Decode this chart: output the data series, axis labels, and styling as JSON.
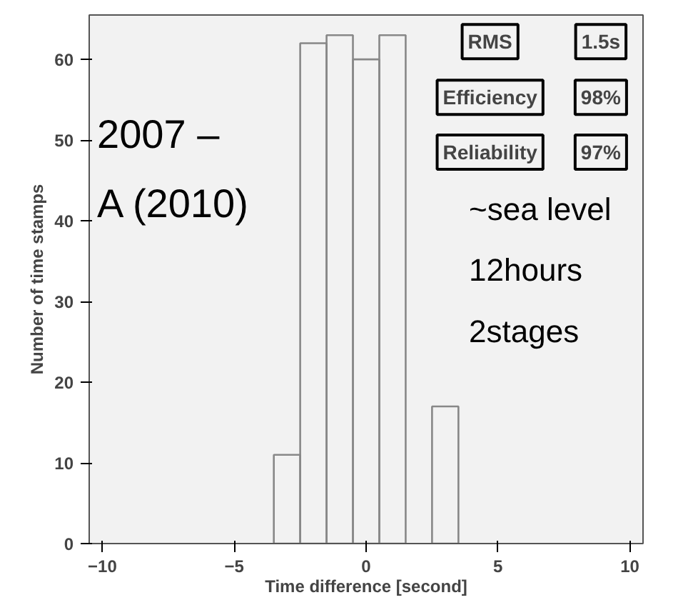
{
  "chart_data": {
    "type": "histogram",
    "xlabel": "Time difference [second]",
    "ylabel": "Number of time stamps",
    "bins": [
      -3.5,
      -2.5,
      -1.5,
      -0.5,
      0.5,
      1.5,
      2.5,
      3.5
    ],
    "values": [
      11,
      62,
      63,
      60,
      63,
      null,
      17
    ],
    "color": "#888888",
    "xlim": [
      -10.5,
      10.5
    ],
    "ylim": [
      0,
      65.5
    ],
    "xticks": [
      -10,
      -5,
      0,
      5,
      10
    ],
    "yticks": [
      0,
      10,
      20,
      30,
      40,
      50,
      60
    ],
    "grid": false,
    "annotations": [
      "2007 –",
      "A (2010)",
      "~sea level",
      "12hours",
      "2stages",
      "RMS",
      "1.5s",
      "Efficiency",
      "98%",
      "Reliability",
      "97%"
    ]
  }
}
